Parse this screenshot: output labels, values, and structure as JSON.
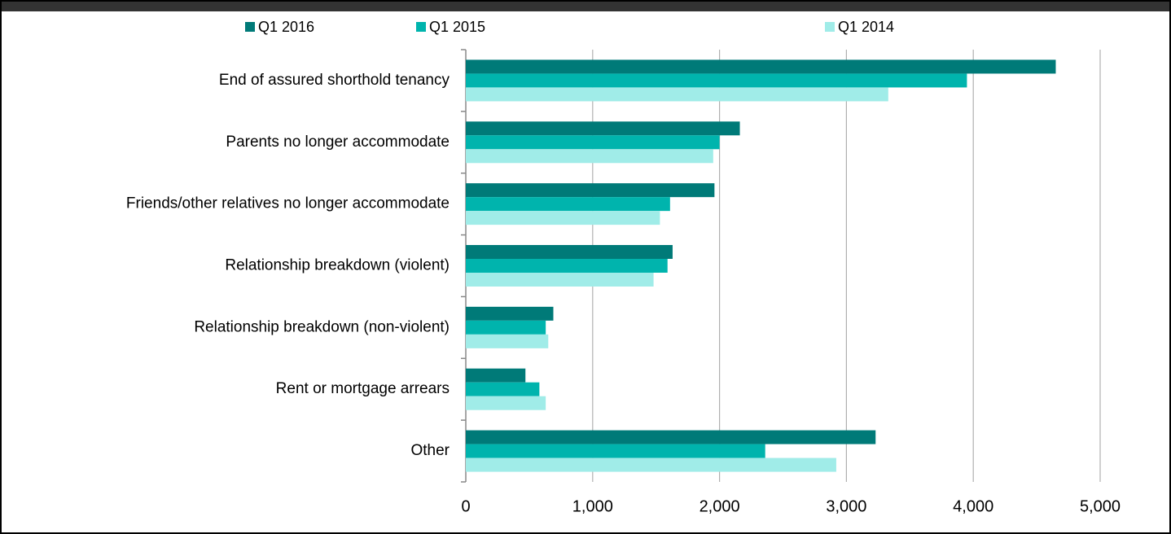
{
  "chart_data": {
    "type": "bar",
    "orientation": "horizontal",
    "categories": [
      "End of assured shorthold tenancy",
      "Parents no longer accommodate",
      "Friends/other relatives no longer accommodate",
      "Relationship breakdown (violent)",
      "Relationship breakdown (non-violent)",
      "Rent or mortgage arrears",
      "Other"
    ],
    "series": [
      {
        "name": "Q1 2016",
        "color": "#007a78",
        "values": [
          4650,
          2160,
          1960,
          1630,
          690,
          470,
          3230
        ]
      },
      {
        "name": "Q1 2015",
        "color": "#00b4ad",
        "values": [
          3950,
          2000,
          1610,
          1590,
          630,
          580,
          2360
        ]
      },
      {
        "name": "Q1 2014",
        "color": "#a0ece8",
        "values": [
          3330,
          1950,
          1530,
          1480,
          650,
          630,
          2920
        ]
      }
    ],
    "xlim": [
      0,
      5000
    ],
    "xticks": [
      0,
      {
        "value": 1000,
        "label": "1,000"
      },
      {
        "value": 2000,
        "label": "2,000"
      },
      {
        "value": 3000,
        "label": "3,000"
      },
      {
        "value": 4000,
        "label": "4,000"
      },
      {
        "value": 5000,
        "label": "5,000"
      }
    ],
    "grid": true,
    "legend": "top"
  }
}
